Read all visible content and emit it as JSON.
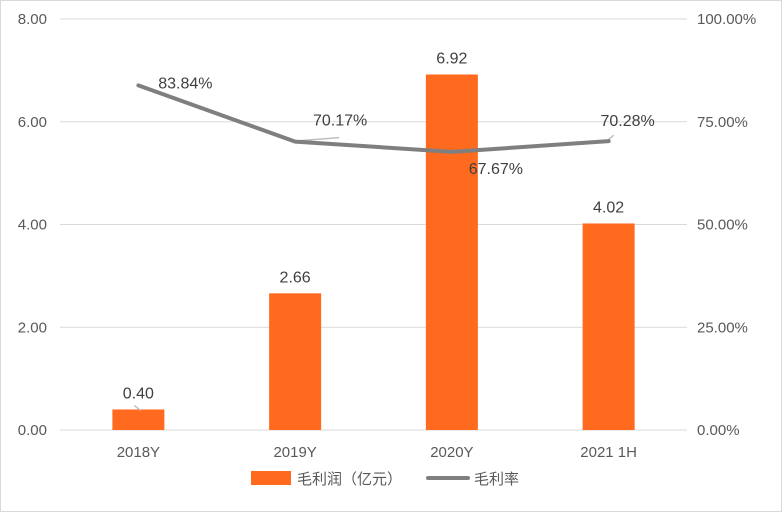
{
  "chart_data": {
    "type": "bar",
    "categories": [
      "2018Y",
      "2019Y",
      "2020Y",
      "2021 1H"
    ],
    "series": [
      {
        "name": "毛利润（亿元）",
        "type": "bar",
        "axis": "left",
        "values": [
          0.4,
          2.66,
          6.92,
          4.02
        ],
        "labels": [
          "0.40",
          "2.66",
          "6.92",
          "4.02"
        ],
        "color": "#ff6a1f"
      },
      {
        "name": "毛利率",
        "type": "line",
        "axis": "right",
        "values": [
          83.84,
          70.17,
          67.67,
          70.28
        ],
        "labels": [
          "83.84%",
          "70.17%",
          "67.67%",
          "70.28%"
        ],
        "color": "#7f7f7f"
      }
    ],
    "y_left": {
      "range": [
        0,
        8
      ],
      "ticks": [
        "0.00",
        "2.00",
        "4.00",
        "6.00",
        "8.00"
      ]
    },
    "y_right": {
      "range": [
        0,
        100
      ],
      "ticks": [
        "0.00%",
        "25.00%",
        "50.00%",
        "75.00%",
        "100.00%"
      ]
    },
    "grid": true,
    "legend_position": "bottom"
  }
}
